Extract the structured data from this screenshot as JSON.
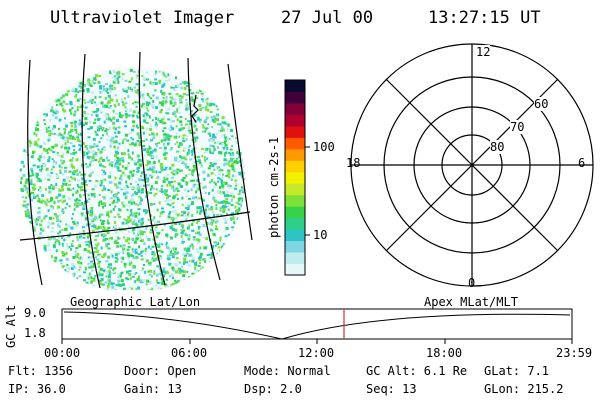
{
  "header": {
    "instrument": "Ultraviolet Imager",
    "date": "27 Jul 00",
    "time": "13:27:15 UT"
  },
  "colorbar": {
    "unit_label": "photon cm-2s-1",
    "tick_labels": [
      "100",
      "10"
    ],
    "colors": [
      "#e6f7f7",
      "#c0ecf0",
      "#7fd6e0",
      "#2fc3c8",
      "#2ecf8a",
      "#35d24a",
      "#7fe03a",
      "#c6ea2a",
      "#f0f000",
      "#ffd000",
      "#ff9a00",
      "#ff5a00",
      "#e01010",
      "#b00030",
      "#80003a",
      "#40003a",
      "#0a0a30"
    ]
  },
  "polar": {
    "mlt_labels": {
      "top": "12",
      "bottom": "0",
      "left": "18",
      "right": "6"
    },
    "lat_labels": [
      "60",
      "70",
      "80"
    ]
  },
  "altitude_panel": {
    "left_title": "Geographic Lat/Lon",
    "right_title": "Apex MLat/MLT",
    "axis_label": "GC Alt",
    "y_ticks": [
      "9.0",
      "1.8"
    ],
    "time_ticks": [
      "00:00",
      "06:00",
      "12:00",
      "18:00",
      "23:59"
    ],
    "current_marker_color": "#cc3333"
  },
  "status": {
    "row1": {
      "flt": "Flt: 1356",
      "door": "Door: Open",
      "mode": "Mode: Normal",
      "gc_alt": "GC Alt: 6.1 Re",
      "glat": "GLat:   7.1"
    },
    "row2": {
      "ip": "IP: 36.0",
      "gain": "Gain: 13",
      "dsp": "Dsp:      2.0",
      "seq": "Seq: 13",
      "glon": "GLon: 215.2"
    }
  }
}
